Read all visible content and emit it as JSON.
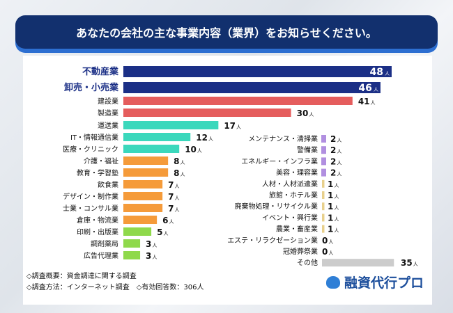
{
  "title": "あなたの会社の主な事業内容（業界）をお知らせください。",
  "chart_data": {
    "type": "bar",
    "orientation": "horizontal",
    "unit": "人",
    "columns": [
      {
        "categories": [
          "不動産業",
          "卸売・小売業",
          "建設業",
          "製造業",
          "運送業",
          "IT・情報通信業",
          "医療・クリニック",
          "介護・福祉",
          "教育・学習塾",
          "飲食業",
          "デザイン・制作業",
          "士業・コンサル業",
          "倉庫・物流業",
          "印刷・出版業",
          "調剤薬局",
          "広告代理業"
        ],
        "values": [
          48,
          46,
          41,
          30,
          17,
          12,
          10,
          8,
          8,
          7,
          7,
          7,
          6,
          5,
          3,
          3
        ],
        "colors": [
          "#1b2f86",
          "#1b2f86",
          "#e55d5d",
          "#e55d5d",
          "#3bd8bc",
          "#3bd8bc",
          "#3bd8bc",
          "#f59b3a",
          "#f59b3a",
          "#f59b3a",
          "#f59b3a",
          "#f59b3a",
          "#f59b3a",
          "#8fd94b",
          "#8fd94b",
          "#8fd94b"
        ]
      },
      {
        "categories": [
          "メンテナンス・清掃業",
          "警備業",
          "エネルギー・インフラ業",
          "美容・理容業",
          "人材・人材派遣業",
          "旅館・ホテル業",
          "廃棄物処理・リサイクル業",
          "イベント・興行業",
          "農業・畜産業",
          "エステ・リラクゼーション業",
          "冠婚葬祭業",
          "その他"
        ],
        "values": [
          2,
          2,
          2,
          2,
          1,
          1,
          1,
          1,
          1,
          0,
          0,
          35
        ],
        "colors": [
          "#b18fe0",
          "#b18fe0",
          "#b18fe0",
          "#b18fe0",
          "#e8d08c",
          "#e8d08c",
          "#e8d08c",
          "#e8d08c",
          "#e8d08c",
          "#e8d08c",
          "#e8d08c",
          "#cccccc"
        ]
      }
    ]
  },
  "notes": [
    "◇調査概要：資金調達に関する調査",
    "◇調査方法：インターネット調査　◇有効回答数：306人"
  ],
  "logo": "融資代行プロ"
}
